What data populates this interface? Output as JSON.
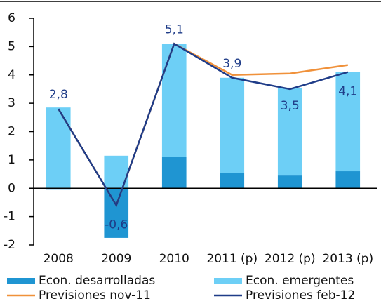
{
  "chart_data": {
    "type": "bar-line",
    "categories": [
      "2008",
      "2009",
      "2010",
      "2011 (p)",
      "2012 (p)",
      "2013 (p)"
    ],
    "series": [
      {
        "name": "Econ. desarrolladas",
        "kind": "bar",
        "color": "#1f95d2",
        "values": [
          -0.05,
          -1.75,
          1.1,
          0.55,
          0.45,
          0.6
        ]
      },
      {
        "name": "Econ. emergentes",
        "kind": "bar",
        "color": "#6dcff6",
        "values": [
          2.85,
          1.15,
          4.0,
          3.35,
          3.1,
          3.5
        ]
      },
      {
        "name": "Previsiones nov-11",
        "kind": "line",
        "color": "#f0913a",
        "values": [
          2.8,
          -0.6,
          5.1,
          4.0,
          4.05,
          4.35
        ]
      },
      {
        "name": "Previsiones feb-12",
        "kind": "line",
        "color": "#1f3c88",
        "values": [
          2.8,
          -0.6,
          5.1,
          3.9,
          3.5,
          4.1
        ],
        "value_labels": [
          "2,8",
          "-0,6",
          "5,1",
          "3,9",
          "3,5",
          "4,1"
        ]
      }
    ],
    "ylim": [
      -2,
      6
    ],
    "yticks": [
      -2,
      -1,
      0,
      1,
      2,
      3,
      4,
      5,
      6
    ],
    "grid": false
  }
}
